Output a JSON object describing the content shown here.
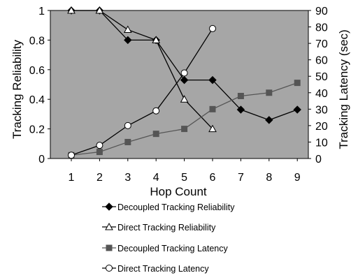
{
  "chart_data": {
    "type": "line",
    "x": [
      1,
      2,
      3,
      4,
      5,
      6,
      7,
      8,
      9
    ],
    "xlabel": "Hop Count",
    "ylabel": "Tracking Reliability",
    "y2label": "Tracking Latency (sec)",
    "ylim": [
      0,
      1
    ],
    "y2lim": [
      0,
      90
    ],
    "yticks": [
      "0",
      "0.2",
      "0.4",
      "0.6",
      "0.8",
      "1"
    ],
    "y2ticks": [
      "0",
      "10",
      "20",
      "30",
      "40",
      "50",
      "60",
      "70",
      "80",
      "90"
    ],
    "xticks": [
      "1",
      "2",
      "3",
      "4",
      "5",
      "6",
      "7",
      "8",
      "9"
    ],
    "grid": false,
    "plot_background": "#a6a6a6",
    "legend_position": "bottom",
    "series": [
      {
        "name": "Decoupled Tracking Reliability",
        "axis": "left",
        "marker": "diamond-filled",
        "color": "#000000",
        "x": [
          1,
          2,
          3,
          4,
          5,
          6,
          7,
          8,
          9
        ],
        "values": [
          1,
          1,
          0.8,
          0.8,
          0.53,
          0.53,
          0.33,
          0.26,
          0.33
        ]
      },
      {
        "name": "Direct Tracking Reliability",
        "axis": "left",
        "marker": "triangle-open",
        "color": "#000000",
        "x": [
          1,
          2,
          3,
          4,
          5,
          6
        ],
        "values": [
          1,
          1,
          0.87,
          0.8,
          0.4,
          0.2
        ]
      },
      {
        "name": "Decoupled Tracking Latency",
        "axis": "right",
        "marker": "square-filled",
        "color": "#555555",
        "x": [
          1,
          2,
          3,
          4,
          5,
          6,
          7,
          8,
          9
        ],
        "values": [
          2,
          4,
          10,
          15,
          18,
          30,
          38,
          40,
          46
        ]
      },
      {
        "name": "Direct Tracking Latency",
        "axis": "right",
        "marker": "circle-open",
        "color": "#000000",
        "x": [
          1,
          2,
          3,
          4,
          5,
          6
        ],
        "values": [
          2,
          8,
          20,
          29,
          52,
          79
        ]
      }
    ]
  }
}
